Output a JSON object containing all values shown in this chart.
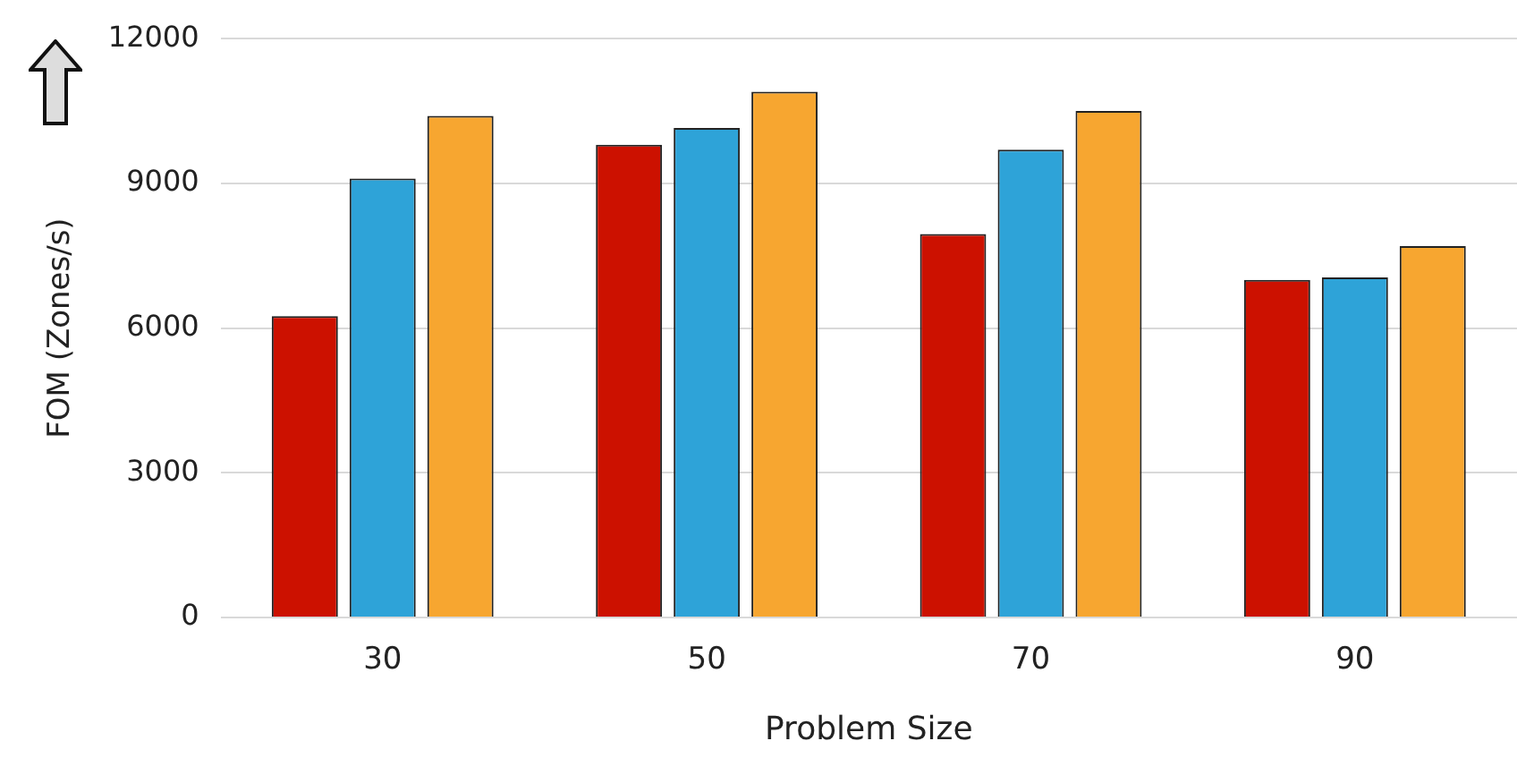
{
  "chart_data": {
    "type": "bar",
    "xlabel": "Problem Size",
    "ylabel": "FOM (Zones/s)",
    "categories": [
      "30",
      "50",
      "70",
      "90"
    ],
    "series": [
      {
        "color": "#cc1100",
        "values": [
          6250,
          9800,
          7950,
          7000
        ]
      },
      {
        "color": "#2ea3d8",
        "values": [
          9100,
          10150,
          9700,
          7050
        ]
      },
      {
        "color": "#f7a630",
        "values": [
          10400,
          10900,
          10500,
          7700
        ]
      }
    ],
    "ylim": [
      0,
      12000
    ],
    "yticks": [
      0,
      3000,
      6000,
      9000,
      12000
    ],
    "grid": "y"
  }
}
